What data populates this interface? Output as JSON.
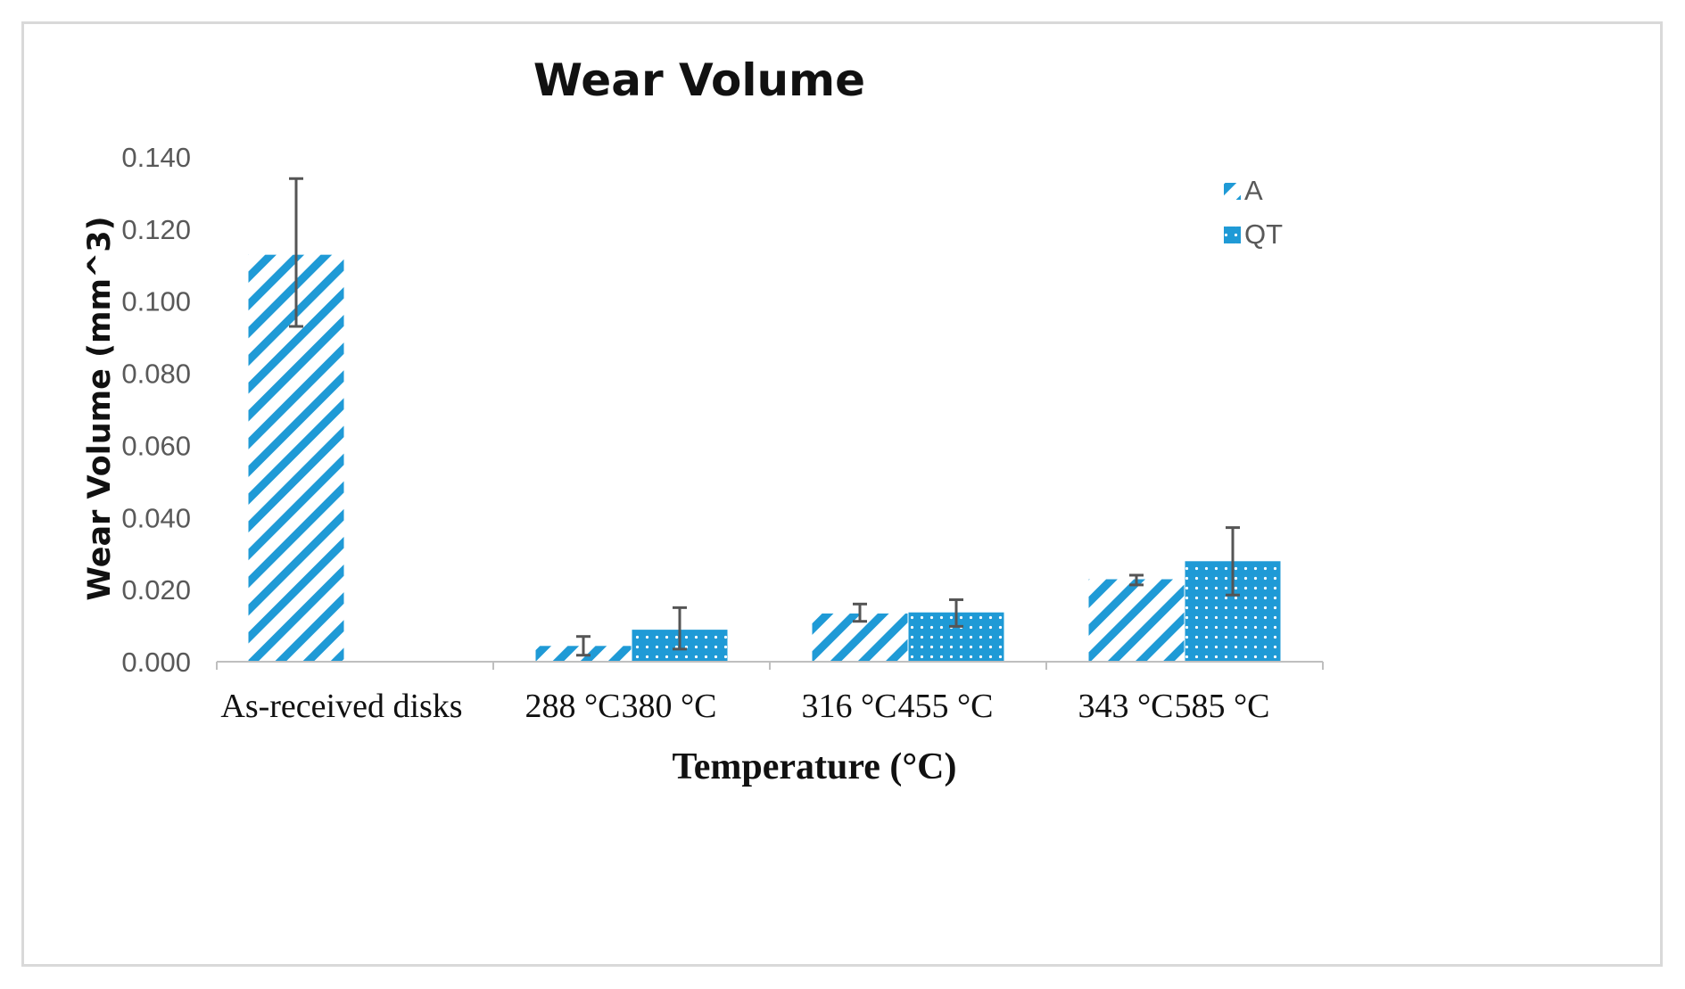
{
  "chart_data": {
    "type": "bar",
    "title": "Wear Volume",
    "xlabel": "Temperature (°C)",
    "ylabel": "Wear Volume (mm^3)",
    "ylim": [
      0,
      0.14
    ],
    "yticks": [
      "0.000",
      "0.020",
      "0.040",
      "0.060",
      "0.080",
      "0.100",
      "0.120",
      "0.140"
    ],
    "colors": {
      "bar": "#1f9ad6",
      "axis": "#bfbfbf",
      "error": "#555555",
      "legend_text": "#595959"
    },
    "groups": [
      {
        "bars": [
          {
            "label": "As-received  disks",
            "series": "A",
            "value": 0.113,
            "err_low": 0.093,
            "err_high": 0.134
          }
        ]
      },
      {
        "bars": [
          {
            "label": "288 °C",
            "series": "A",
            "value": 0.0045,
            "err_low": 0.0018,
            "err_high": 0.007
          },
          {
            "label": "380 °C",
            "series": "QT",
            "value": 0.009,
            "err_low": 0.0035,
            "err_high": 0.015
          }
        ]
      },
      {
        "bars": [
          {
            "label": "316 °C",
            "series": "A",
            "value": 0.0135,
            "err_low": 0.0112,
            "err_high": 0.016
          },
          {
            "label": "455 °C",
            "series": "QT",
            "value": 0.0138,
            "err_low": 0.0098,
            "err_high": 0.0172
          }
        ]
      },
      {
        "bars": [
          {
            "label": "343 °C",
            "series": "A",
            "value": 0.023,
            "err_low": 0.0213,
            "err_high": 0.024
          },
          {
            "label": "585 °C",
            "series": "QT",
            "value": 0.028,
            "err_low": 0.0185,
            "err_high": 0.0372
          }
        ]
      }
    ],
    "legend": {
      "position": "top-right",
      "entries": [
        {
          "name": "A",
          "pattern": "diagonal-stripes"
        },
        {
          "name": "QT",
          "pattern": "dotted"
        }
      ]
    }
  }
}
